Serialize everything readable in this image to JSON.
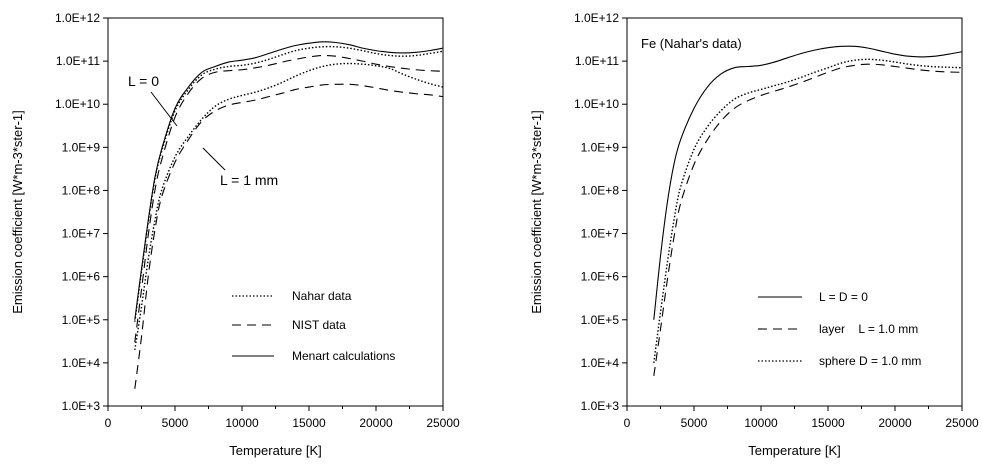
{
  "chart_data": [
    {
      "type": "line",
      "xlabel": "Temperature [K]",
      "ylabel": "Emission coefficient [W*m-3*ster-1]",
      "xlim": [
        0,
        25000
      ],
      "ylim": [
        1000,
        1000000000000
      ],
      "yscale": "log",
      "x_ticks": [
        0,
        5000,
        10000,
        15000,
        20000,
        25000
      ],
      "x_tick_labels": [
        "0",
        "5000",
        "10000",
        "15000",
        "20000",
        "25000"
      ],
      "y_ticks": [
        1000,
        10000,
        100000,
        1000000,
        10000000,
        100000000,
        1000000000,
        10000000000,
        100000000000,
        1000000000000
      ],
      "y_tick_labels": [
        "1.0E+3",
        "1.0E+4",
        "1.0E+5",
        "1.0E+6",
        "1.0E+7",
        "1.0E+8",
        "1.0E+9",
        "1.0E+10",
        "1.0E+11",
        "1.0E+12"
      ],
      "grid": false,
      "legend_position": "bottom-right",
      "legend": [
        {
          "label": "Nahar data",
          "style": "dotted"
        },
        {
          "label": "NIST data",
          "style": "dashed"
        },
        {
          "label": "Menart calculations",
          "style": "solid"
        }
      ],
      "annotations": [
        {
          "text": "L = 0",
          "x": 2300,
          "y": 300000000000
        },
        {
          "text": "L = 1 mm",
          "x": 8200,
          "y": 320000000
        }
      ],
      "series": [
        {
          "style": "solid",
          "group": "L = 0",
          "x": [
            2000,
            2500,
            3000,
            3500,
            4000,
            5000,
            6000,
            7000,
            8000,
            9000,
            10000,
            11000,
            12000,
            13000,
            14000,
            15000,
            16000,
            17000,
            18000,
            19000,
            20000,
            21000,
            22000,
            23000,
            24000,
            25000
          ],
          "y": [
            100000,
            1500000,
            20000000,
            200000000,
            900000000,
            8000000000,
            25000000000,
            55000000000,
            75000000000,
            95000000000,
            105000000000,
            120000000000,
            150000000000,
            190000000000,
            230000000000,
            260000000000,
            280000000000,
            270000000000,
            240000000000,
            200000000000,
            175000000000,
            160000000000,
            155000000000,
            160000000000,
            175000000000,
            200000000000
          ]
        },
        {
          "style": "dotted",
          "group": "L = 0",
          "x": [
            2000,
            2500,
            3000,
            3500,
            4000,
            5000,
            6000,
            7000,
            8000,
            9000,
            10000,
            11000,
            12000,
            13000,
            14000,
            15000,
            16000,
            17000,
            18000,
            19000,
            20000,
            21000,
            22000,
            23000,
            24000,
            25000
          ],
          "y": [
            90000,
            1300000,
            18000000,
            180000000,
            800000000,
            7000000000,
            22000000000,
            48000000000,
            65000000000,
            75000000000,
            80000000000,
            90000000000,
            110000000000,
            140000000000,
            175000000000,
            200000000000,
            215000000000,
            215000000000,
            200000000000,
            175000000000,
            150000000000,
            135000000000,
            130000000000,
            135000000000,
            150000000000,
            170000000000
          ]
        },
        {
          "style": "dashed",
          "group": "L = 0",
          "x": [
            2000,
            2500,
            3000,
            3500,
            4000,
            5000,
            6000,
            7000,
            8000,
            9000,
            10000,
            11000,
            12000,
            13000,
            14000,
            15000,
            16000,
            17000,
            18000,
            19000,
            20000,
            21000,
            22000,
            23000,
            24000,
            25000
          ],
          "y": [
            30000,
            500000,
            9000000,
            100000000,
            500000000,
            5000000000,
            18000000000,
            40000000000,
            55000000000,
            60000000000,
            63000000000,
            70000000000,
            80000000000,
            95000000000,
            110000000000,
            125000000000,
            135000000000,
            130000000000,
            115000000000,
            100000000000,
            85000000000,
            75000000000,
            68000000000,
            63000000000,
            60000000000,
            58000000000
          ]
        },
        {
          "style": "dotted",
          "group": "L = 1 mm",
          "x": [
            2000,
            2500,
            3000,
            3500,
            4000,
            5000,
            6000,
            7000,
            8000,
            9000,
            10000,
            11000,
            12000,
            13000,
            14000,
            15000,
            16000,
            17000,
            18000,
            19000,
            20000,
            21000,
            22000,
            23000,
            24000,
            25000
          ],
          "y": [
            20000,
            200000,
            2500000,
            20000000,
            100000000,
            600000000,
            1800000000,
            4500000000,
            9000000000,
            13000000000,
            16000000000,
            19000000000,
            24000000000,
            32000000000,
            45000000000,
            60000000000,
            75000000000,
            85000000000,
            88000000000,
            85000000000,
            78000000000,
            68000000000,
            50000000000,
            38000000000,
            30000000000,
            25000000000
          ]
        },
        {
          "style": "dashed",
          "group": "L = 1 mm",
          "x": [
            2000,
            2500,
            3000,
            3500,
            4000,
            5000,
            6000,
            7000,
            8000,
            9000,
            10000,
            11000,
            12000,
            13000,
            14000,
            15000,
            16000,
            17000,
            18000,
            19000,
            20000,
            21000,
            22000,
            23000,
            24000,
            25000
          ],
          "y": [
            2500,
            40000,
            1000000,
            12000000,
            70000000,
            450000000,
            1500000000,
            4000000000,
            7000000000,
            9500000000,
            11000000000,
            12500000000,
            15000000000,
            18000000000,
            22000000000,
            25000000000,
            28000000000,
            29000000000,
            29000000000,
            27000000000,
            24000000000,
            21000000000,
            19000000000,
            17500000000,
            16500000000,
            15000000000
          ]
        }
      ]
    },
    {
      "type": "line",
      "title": "Fe (Nahar's data)",
      "xlabel": "Temperature [K]",
      "ylabel": "Emission coefficient [W*m-3*ster-1]",
      "xlim": [
        0,
        25000
      ],
      "ylim": [
        1000,
        1000000000000
      ],
      "yscale": "log",
      "x_ticks": [
        0,
        5000,
        10000,
        15000,
        20000,
        25000
      ],
      "x_tick_labels": [
        "0",
        "5000",
        "10000",
        "15000",
        "20000",
        "25000"
      ],
      "y_ticks": [
        1000,
        10000,
        100000,
        1000000,
        10000000,
        100000000,
        1000000000,
        10000000000,
        100000000000,
        1000000000000
      ],
      "y_tick_labels": [
        "1.0E+3",
        "1.0E+4",
        "1.0E+5",
        "1.0E+6",
        "1.0E+7",
        "1.0E+8",
        "1.0E+9",
        "1.0E+10",
        "1.0E+11",
        "1.0E+12"
      ],
      "grid": false,
      "legend_position": "bottom-right",
      "legend": [
        {
          "label": "L = D = 0",
          "style": "solid"
        },
        {
          "label": "layer    L = 1.0 mm",
          "style": "dashed"
        },
        {
          "label": "sphere D = 1.0 mm",
          "style": "dotted"
        }
      ],
      "series": [
        {
          "name": "L = D = 0",
          "style": "solid",
          "x": [
            2000,
            2500,
            3000,
            3500,
            4000,
            5000,
            6000,
            7000,
            8000,
            9000,
            10000,
            11000,
            12000,
            13000,
            14000,
            15000,
            16000,
            17000,
            18000,
            19000,
            20000,
            21000,
            22000,
            23000,
            24000,
            25000
          ],
          "y": [
            100000,
            3000000,
            50000000,
            400000000,
            1500000000,
            8000000000,
            25000000000,
            50000000000,
            70000000000,
            75000000000,
            80000000000,
            95000000000,
            120000000000,
            150000000000,
            180000000000,
            205000000000,
            220000000000,
            220000000000,
            200000000000,
            170000000000,
            145000000000,
            130000000000,
            125000000000,
            130000000000,
            145000000000,
            165000000000
          ]
        },
        {
          "name": "layer    L = 1.0 mm",
          "style": "dashed",
          "x": [
            2000,
            2500,
            3000,
            3500,
            4000,
            5000,
            6000,
            7000,
            8000,
            9000,
            10000,
            11000,
            12000,
            13000,
            14000,
            15000,
            16000,
            17000,
            18000,
            19000,
            20000,
            21000,
            22000,
            23000,
            24000,
            25000
          ],
          "y": [
            5000,
            60000,
            800000,
            8000000,
            50000000,
            400000000,
            1500000000,
            4000000000,
            8000000000,
            12000000000,
            16000000000,
            20000000000,
            25000000000,
            32000000000,
            42000000000,
            55000000000,
            70000000000,
            80000000000,
            85000000000,
            82000000000,
            75000000000,
            68000000000,
            62000000000,
            58000000000,
            56000000000,
            55000000000
          ]
        },
        {
          "name": "sphere D = 1.0 mm",
          "style": "dotted",
          "x": [
            2000,
            2500,
            3000,
            3500,
            4000,
            5000,
            6000,
            7000,
            8000,
            9000,
            10000,
            11000,
            12000,
            13000,
            14000,
            15000,
            16000,
            17000,
            18000,
            19000,
            20000,
            21000,
            22000,
            23000,
            24000,
            25000
          ],
          "y": [
            10000,
            150000,
            2000000,
            20000000,
            120000000,
            900000000,
            3000000000,
            7000000000,
            13000000000,
            18000000000,
            22000000000,
            27000000000,
            33000000000,
            42000000000,
            55000000000,
            70000000000,
            90000000000,
            105000000000,
            110000000000,
            105000000000,
            95000000000,
            85000000000,
            78000000000,
            74000000000,
            72000000000,
            70000000000
          ]
        }
      ]
    }
  ]
}
